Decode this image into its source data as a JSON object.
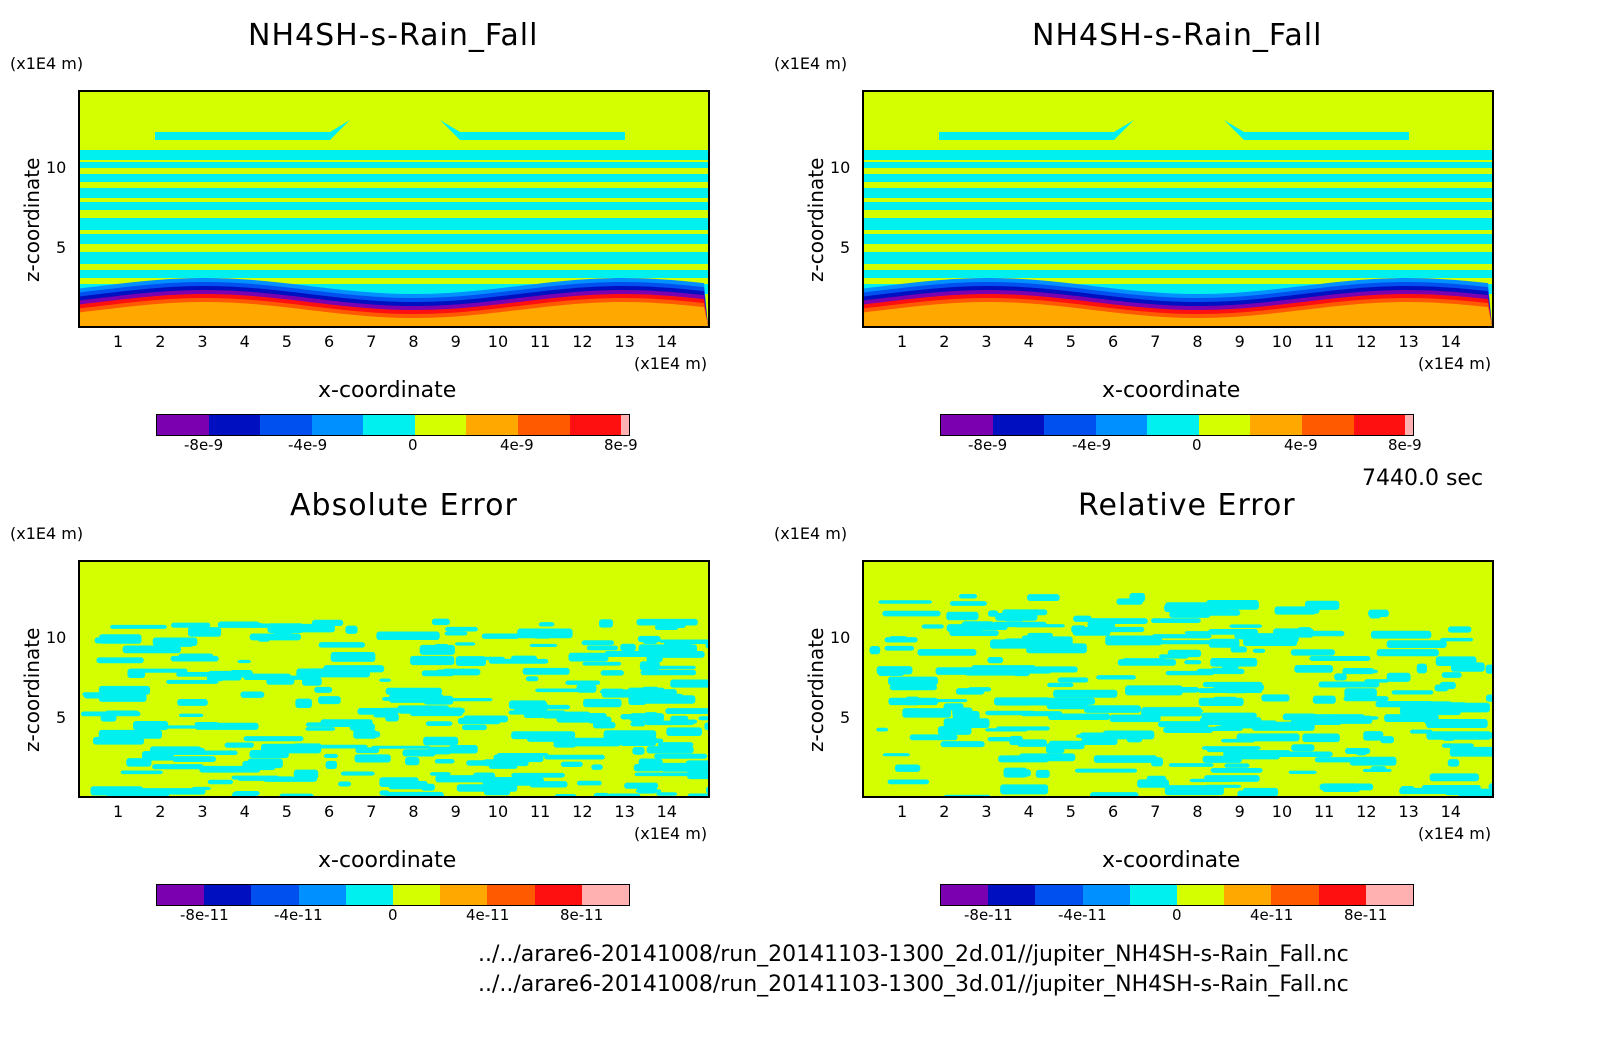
{
  "panels": [
    {
      "title": "NH4SH-s-Rain_Fall",
      "unit_y": "(x1E4 m)",
      "unit_x": "(x1E4 m)",
      "xlabel": "x-coordinate",
      "ylabel": "z-coordinate",
      "cbar_labels": [
        "-8e-9",
        "-4e-9",
        "0",
        "4e-9",
        "8e-9"
      ]
    },
    {
      "title": "NH4SH-s-Rain_Fall",
      "unit_y": "(x1E4 m)",
      "unit_x": "(x1E4 m)",
      "xlabel": "x-coordinate",
      "ylabel": "z-coordinate",
      "cbar_labels": [
        "-8e-9",
        "-4e-9",
        "0",
        "4e-9",
        "8e-9"
      ]
    },
    {
      "title": "Absolute Error",
      "unit_y": "(x1E4 m)",
      "unit_x": "(x1E4 m)",
      "xlabel": "x-coordinate",
      "ylabel": "z-coordinate",
      "cbar_labels": [
        "-8e-11",
        "-4e-11",
        "0",
        "4e-11",
        "8e-11"
      ]
    },
    {
      "title": "Relative Error",
      "unit_y": "(x1E4 m)",
      "unit_x": "(x1E4 m)",
      "xlabel": "x-coordinate",
      "ylabel": "z-coordinate",
      "cbar_labels": [
        "-8e-11",
        "-4e-11",
        "0",
        "4e-11",
        "8e-11"
      ]
    }
  ],
  "x_ticks": [
    "1",
    "2",
    "3",
    "4",
    "5",
    "6",
    "7",
    "8",
    "9",
    "10",
    "11",
    "12",
    "13",
    "14"
  ],
  "y_ticks": [
    "5",
    "10"
  ],
  "colors": {
    "palette": [
      "#7a00b0",
      "#0010c0",
      "#0050f0",
      "#0090ff",
      "#00f0f0",
      "#d4ff00",
      "#ffa800",
      "#ff5a00",
      "#ff1010",
      "#ffb0b0"
    ],
    "background_field": "#d4ff00",
    "alt_field": "#00f0f0"
  },
  "time_label": "7440.0 sec",
  "footer": {
    "line1": "../../arare6-20141008/run_20141103-1300_2d.01//jupiter_NH4SH-s-Rain_Fall.nc",
    "line2": "../../arare6-20141008/run_20141103-1300_3d.01//jupiter_NH4SH-s-Rain_Fall.nc"
  }
}
